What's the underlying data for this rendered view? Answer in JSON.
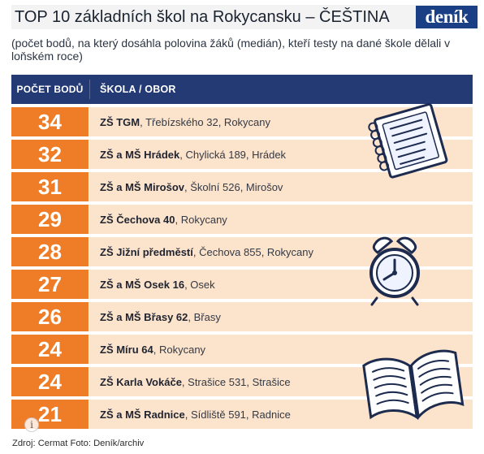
{
  "header": {
    "title": "TOP 10 základních škol na Rokycansku – ČEŠTINA",
    "brand": "deník"
  },
  "subtitle": "(počet bodů, na který dosáhla polovina žáků (medián), kteří testy na dané škole dělali v loňském roce)",
  "table": {
    "headers": {
      "score": "POČET BODŮ",
      "school": "ŠKOLA / OBOR"
    },
    "rows": [
      {
        "score": "34",
        "name": "ZŠ TGM",
        "rest": ", Třebízského 32, Rokycany"
      },
      {
        "score": "32",
        "name": "ZŠ a MŠ Hrádek",
        "rest": ", Chylická 189, Hrádek"
      },
      {
        "score": "31",
        "name": "ZŠ a MŠ Mirošov",
        "rest": ", Školní 526, Mirošov"
      },
      {
        "score": "29",
        "name": "ZŠ Čechova 40",
        "rest": ", Rokycany"
      },
      {
        "score": "28",
        "name": "ZŠ Jižní předměstí",
        "rest": ", Čechova 855, Rokycany"
      },
      {
        "score": "27",
        "name": "ZŠ a MŠ Osek 16",
        "rest": ", Osek"
      },
      {
        "score": "26",
        "name": "ZŠ a MŠ Břasy 62",
        "rest": ", Břasy"
      },
      {
        "score": "24",
        "name": "ZŠ Míru 64",
        "rest": ", Rokycany"
      },
      {
        "score": "24",
        "name": "ZŠ Karla Vokáče",
        "rest": ", Strašice 531, Strašice"
      },
      {
        "score": "21",
        "name": "ZŠ a MŠ Radnice",
        "rest": ", Sídliště 591, Radnice"
      }
    ]
  },
  "decorations": {
    "notebook_icon": "notebook-icon",
    "alarm_clock_icon": "alarm-clock-icon",
    "open_book_icon": "open-book-icon",
    "info_icon": "i"
  },
  "footer": {
    "source": "Zdroj: Cermat  Foto: Deník/archiv"
  },
  "colors": {
    "orange": "#ef7d27",
    "light_orange": "#fce3cb",
    "navy": "#243a75",
    "brand_blue": "#1b3f85"
  }
}
